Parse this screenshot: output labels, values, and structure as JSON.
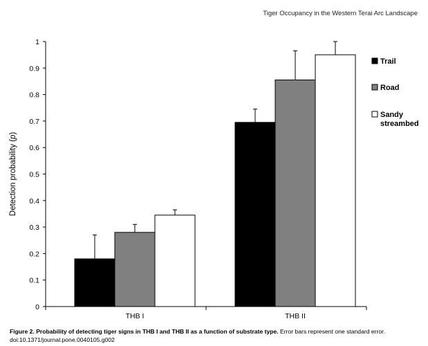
{
  "running_head": "Tiger Occupancy in the Western Terai Arc Landscape",
  "caption": {
    "bold": "Figure 2. Probability of detecting tiger signs in THB I and THB II as a function of substrate type.",
    "normal": " Error bars represent one standard error.",
    "doi": "doi:10.1371/journal.pone.0040105.g002"
  },
  "colors": {
    "Trail": "#000000",
    "Road": "#808080",
    "Sandy streambed": "#ffffff"
  },
  "chart_data": {
    "type": "bar",
    "categories": [
      "THB I",
      "THB II"
    ],
    "ylabel": "Detection probability (p)",
    "ylim": [
      0,
      1
    ],
    "yticks": [
      "0",
      "0.1",
      "0.2",
      "0.3",
      "0.4",
      "0.5",
      "0.6",
      "0.7",
      "0.8",
      "0.9",
      "1"
    ],
    "grid": false,
    "legend_position": "right",
    "series": [
      {
        "name": "Trail",
        "legend_lines": [
          "Trail"
        ],
        "values": [
          0.18,
          0.695
        ],
        "errors": [
          0.09,
          0.05
        ]
      },
      {
        "name": "Road",
        "legend_lines": [
          "Road"
        ],
        "values": [
          0.28,
          0.855
        ],
        "errors": [
          0.03,
          0.11
        ]
      },
      {
        "name": "Sandy streambed",
        "legend_lines": [
          "Sandy",
          "streambed"
        ],
        "values": [
          0.345,
          0.95
        ],
        "errors": [
          0.02,
          0.05
        ]
      }
    ]
  }
}
